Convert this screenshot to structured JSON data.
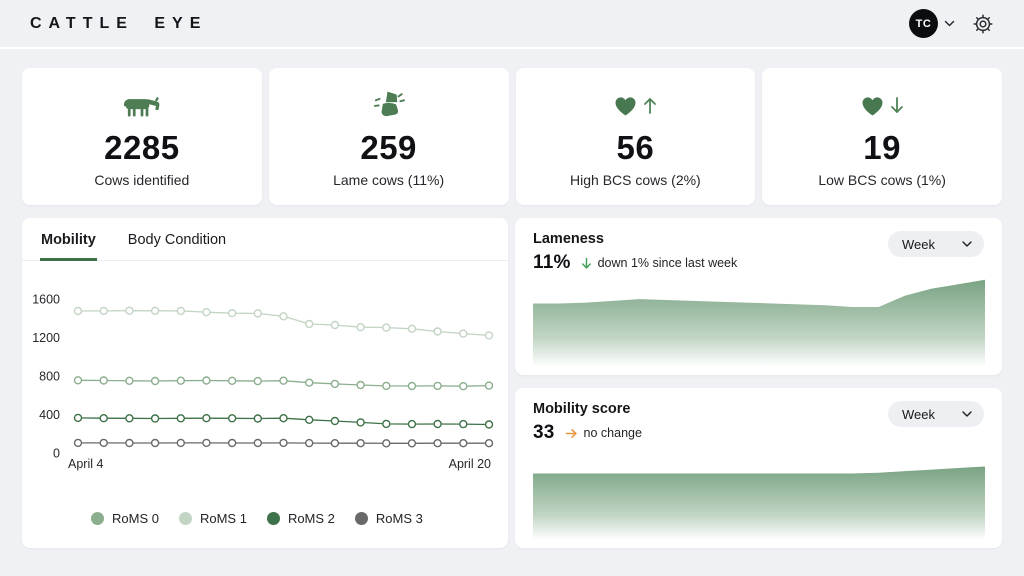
{
  "header": {
    "logo": "CATTLE EYE",
    "avatar_initials": "TC",
    "icons": {
      "avatar_menu": "chevron-down-icon",
      "settings": "gear-icon"
    }
  },
  "stats": [
    {
      "icon": "cow-icon",
      "value": "2285",
      "label": "Cows identified"
    },
    {
      "icon": "hoof-icon",
      "value": "259",
      "label": "Lame cows (11%)"
    },
    {
      "icon": "heart-up-icon",
      "value": "56",
      "label": "High BCS cows (2%)"
    },
    {
      "icon": "heart-down-icon",
      "value": "19",
      "label": "Low BCS cows (1%)"
    }
  ],
  "trends_panel": {
    "tabs": [
      {
        "label": "Mobility",
        "active": true
      },
      {
        "label": "Body Condition",
        "active": false
      }
    ]
  },
  "lameness_panel": {
    "title": "Lameness",
    "value": "11%",
    "delta": "down 1% since last week",
    "delta_direction": "down",
    "range_selector": "Week"
  },
  "mobility_panel": {
    "title": "Mobility score",
    "value": "33",
    "delta": "no change",
    "delta_direction": "flat",
    "range_selector": "Week"
  },
  "colors": {
    "accent_green": "#4E7D54",
    "tab_underline": "#3E7147",
    "delta_green": "#47A05C",
    "delta_orange": "#E8943C",
    "area_top": "#79A383",
    "area_mid": "#C3D6C5",
    "area_bottom": "#FDFEFD"
  },
  "chart_data": [
    {
      "id": "mobility-trend",
      "type": "line",
      "title": "Mobility",
      "x_start_label": "April 4",
      "x_end_label": "April 20",
      "y_ticks": [
        0,
        400,
        800,
        1200,
        1600
      ],
      "ylim": [
        0,
        1600
      ],
      "grid": false,
      "legend_position": "bottom",
      "series": [
        {
          "name": "RoMS 0",
          "color": "#8BAE8E",
          "values": [
            755,
            753,
            750,
            748,
            751,
            753,
            750,
            747,
            751,
            730,
            718,
            707,
            697,
            696,
            697,
            694,
            700
          ]
        },
        {
          "name": "RoMS 1",
          "color": "#C2D4C3",
          "values": [
            1475,
            1476,
            1478,
            1477,
            1476,
            1463,
            1452,
            1450,
            1420,
            1340,
            1330,
            1307,
            1303,
            1290,
            1262,
            1240,
            1222
          ]
        },
        {
          "name": "RoMS 2",
          "color": "#3E7248",
          "values": [
            365,
            362,
            360,
            358,
            360,
            362,
            360,
            358,
            362,
            345,
            332,
            318,
            302,
            300,
            301,
            300,
            296
          ]
        },
        {
          "name": "RoMS 3",
          "color": "#696969",
          "values": [
            105,
            105,
            104,
            104,
            105,
            105,
            104,
            104,
            105,
            103,
            102,
            102,
            101,
            101,
            102,
            102,
            102
          ]
        }
      ]
    },
    {
      "id": "lameness-trend",
      "type": "area",
      "title": "Lameness",
      "ylim": [
        0,
        1
      ],
      "values": [
        0.71,
        0.71,
        0.72,
        0.74,
        0.76,
        0.75,
        0.74,
        0.73,
        0.72,
        0.71,
        0.7,
        0.69,
        0.67,
        0.67,
        0.8,
        0.88,
        0.93,
        0.98
      ]
    },
    {
      "id": "mobility-score-trend",
      "type": "area",
      "title": "Mobility score",
      "ylim": [
        0,
        1
      ],
      "values": [
        0.84,
        0.84,
        0.84,
        0.84,
        0.84,
        0.84,
        0.84,
        0.84,
        0.84,
        0.84,
        0.84,
        0.84,
        0.84,
        0.85,
        0.87,
        0.89,
        0.91,
        0.93
      ]
    }
  ]
}
